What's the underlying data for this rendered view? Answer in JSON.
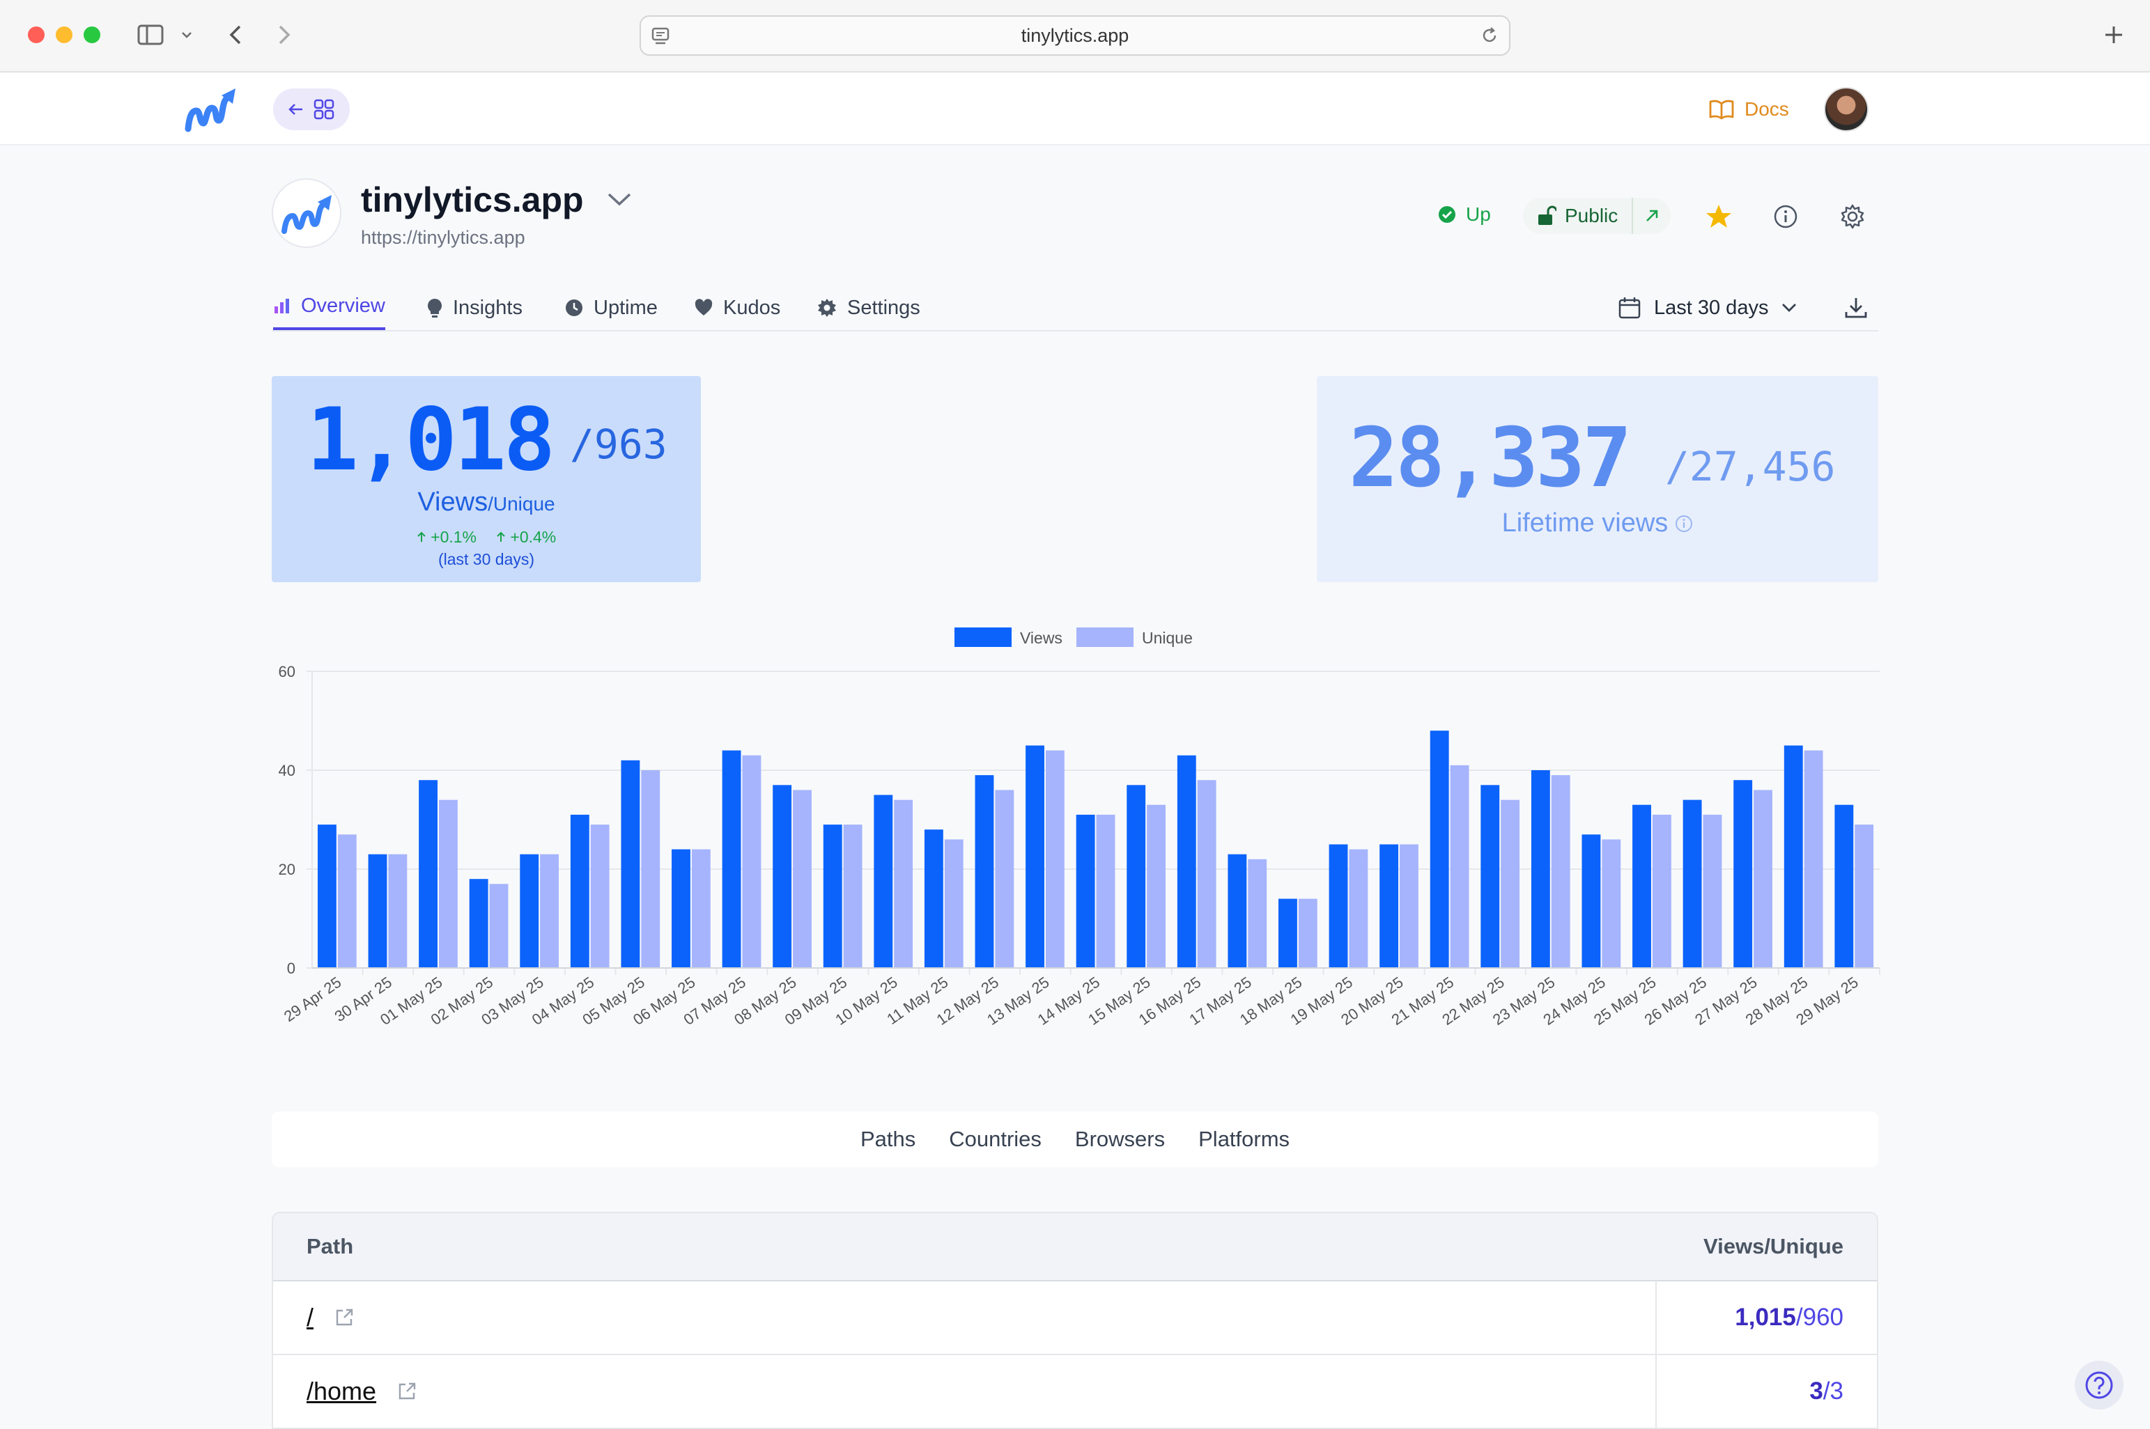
{
  "browser": {
    "url": "tinylytics.app"
  },
  "header": {
    "docs_label": "Docs"
  },
  "site": {
    "name": "tinylytics.app",
    "url": "https://tinylytics.app",
    "status": "Up",
    "visibility": "Public"
  },
  "tabs": [
    {
      "label": "Overview",
      "icon": "bar-chart-icon"
    },
    {
      "label": "Insights",
      "icon": "lightbulb-icon"
    },
    {
      "label": "Uptime",
      "icon": "clock-icon"
    },
    {
      "label": "Kudos",
      "icon": "heart-icon"
    },
    {
      "label": "Settings",
      "icon": "gear-icon"
    }
  ],
  "range": {
    "label": "Last 30 days"
  },
  "stats": {
    "views": "1,018",
    "unique_suffix": "/963",
    "views_label": "Views",
    "unique_label": "/Unique",
    "delta_views": "+0.1%",
    "delta_unique": "+0.4%",
    "delta_note": "(last 30 days)",
    "lifetime": "28,337",
    "lifetime_suffix": "/27,456",
    "lifetime_label": "Lifetime views"
  },
  "colors": {
    "views": "#0b63fc",
    "unique": "#a5b4fc",
    "accent": "#4f46e5"
  },
  "chart_data": {
    "type": "bar",
    "categories": [
      "29 Apr 25",
      "30 Apr 25",
      "01 May 25",
      "02 May 25",
      "03 May 25",
      "04 May 25",
      "05 May 25",
      "06 May 25",
      "07 May 25",
      "08 May 25",
      "09 May 25",
      "10 May 25",
      "11 May 25",
      "12 May 25",
      "13 May 25",
      "14 May 25",
      "15 May 25",
      "16 May 25",
      "17 May 25",
      "18 May 25",
      "19 May 25",
      "20 May 25",
      "21 May 25",
      "22 May 25",
      "23 May 25",
      "24 May 25",
      "25 May 25",
      "26 May 25",
      "27 May 25",
      "28 May 25",
      "29 May 25"
    ],
    "series": [
      {
        "name": "Views",
        "values": [
          29,
          23,
          38,
          18,
          23,
          31,
          42,
          24,
          44,
          37,
          29,
          35,
          28,
          39,
          45,
          31,
          37,
          43,
          23,
          14,
          25,
          25,
          48,
          37,
          40,
          27,
          33,
          34,
          38,
          45,
          33
        ]
      },
      {
        "name": "Unique",
        "values": [
          27,
          23,
          34,
          17,
          23,
          29,
          40,
          24,
          43,
          36,
          29,
          34,
          26,
          36,
          44,
          31,
          33,
          38,
          22,
          14,
          24,
          25,
          41,
          34,
          39,
          26,
          31,
          31,
          36,
          44,
          29
        ]
      }
    ],
    "yticks": [
      "0",
      "20",
      "40",
      "60"
    ],
    "ylim": [
      0,
      60
    ],
    "legend": "top-center",
    "grid": true
  },
  "breakdown_tabs": [
    "Paths",
    "Countries",
    "Browsers",
    "Platforms"
  ],
  "table": {
    "col_path": "Path",
    "col_views": "Views/Unique",
    "rows": [
      {
        "path": "/",
        "views": "1,015",
        "unique": "/960"
      },
      {
        "path": "/home",
        "views": "3",
        "unique": "/3"
      }
    ]
  }
}
